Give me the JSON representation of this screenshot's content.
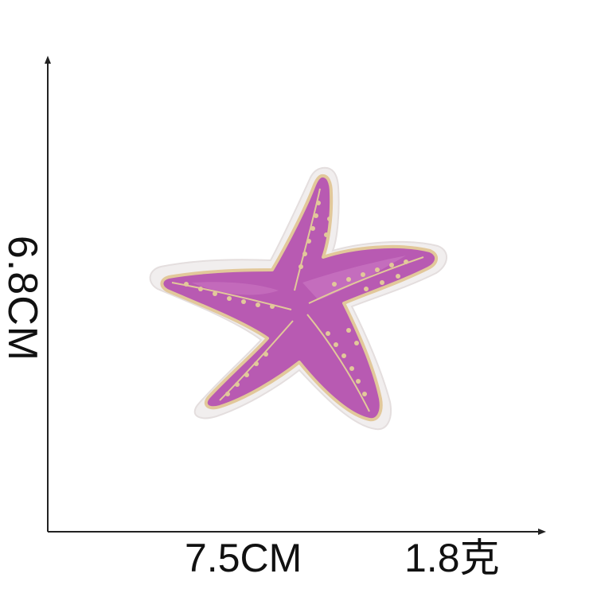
{
  "dimensions": {
    "height_label": "6.8CM",
    "width_label": "7.5CM",
    "weight_label": "1.8克"
  },
  "colors": {
    "patch_backing": "#f1eeee",
    "patch_fill": "#b85ab2",
    "patch_fill_light": "#c975c2",
    "stitch_gold": "#e2c89a",
    "axis_line": "#222222"
  },
  "product": {
    "icon": "starfish-embroidered-patch"
  }
}
